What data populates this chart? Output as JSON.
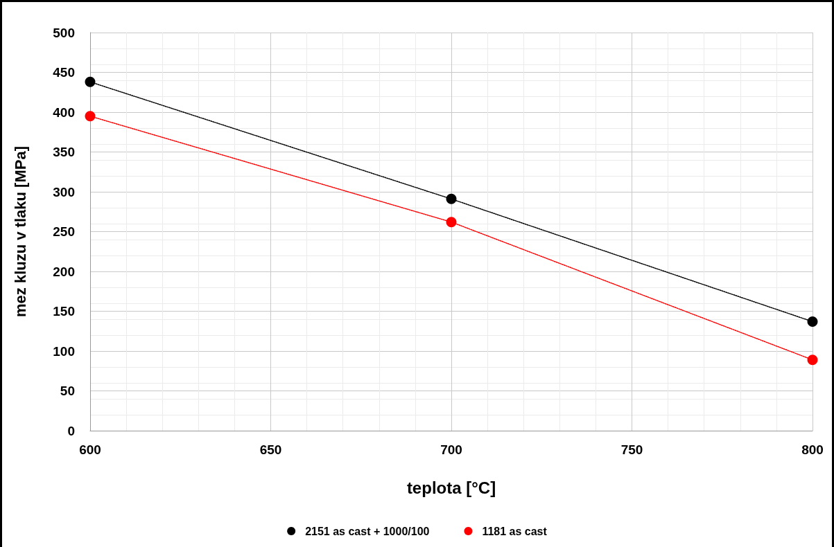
{
  "chart_data": {
    "type": "line",
    "xlabel": "teplota [°C]",
    "ylabel": "mez kluzu v tlaku [MPa]",
    "x": [
      600,
      700,
      800
    ],
    "series": [
      {
        "name": "2151 as cast + 1000/100",
        "color": "#000000",
        "values": [
          438,
          291,
          137
        ]
      },
      {
        "name": "1181 as cast",
        "color": "#ff0000",
        "values": [
          395,
          262,
          89
        ]
      }
    ],
    "xlim": [
      600,
      800
    ],
    "xticks": [
      600,
      650,
      700,
      750,
      800
    ],
    "ylim": [
      0,
      500
    ],
    "yticks": [
      0,
      50,
      100,
      150,
      200,
      250,
      300,
      350,
      400,
      450,
      500
    ],
    "grid": true,
    "legend": "bottom",
    "marker": "circle",
    "line_style": "dotted"
  }
}
